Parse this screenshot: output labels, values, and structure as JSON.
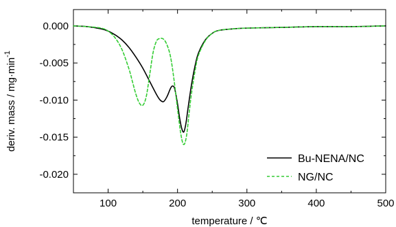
{
  "chart_data": {
    "type": "line",
    "title": "",
    "xlabel": "temperature / ℃",
    "ylabel": "deriv. mass / mg·min",
    "ylabel_sup": "-1",
    "xlim": [
      50,
      500
    ],
    "ylim": [
      -0.0225,
      0.0022
    ],
    "xticks": [
      100,
      200,
      300,
      400,
      500
    ],
    "xtick_labels": [
      "100",
      "200",
      "300",
      "400",
      "500"
    ],
    "yticks": [
      0.0,
      -0.005,
      -0.01,
      -0.015,
      -0.02
    ],
    "ytick_labels": [
      "0.000",
      "-0.005",
      "-0.010",
      "-0.015",
      "-0.020"
    ],
    "grid": false,
    "legend_position": "bottom-right",
    "series": [
      {
        "name": "Bu-NENA/NC",
        "color": "#000000",
        "dash": "solid",
        "x": [
          50,
          70,
          90,
          100,
          110,
          120,
          130,
          140,
          150,
          160,
          170,
          175,
          180,
          185,
          190,
          193,
          196,
          200,
          203,
          206,
          209,
          212,
          215,
          220,
          225,
          230,
          240,
          250,
          260,
          280,
          300,
          350,
          400,
          450,
          500
        ],
        "y": [
          0.0,
          -0.0001,
          -0.0004,
          -0.0007,
          -0.0012,
          -0.0019,
          -0.0029,
          -0.0042,
          -0.0057,
          -0.0075,
          -0.0093,
          -0.01,
          -0.0102,
          -0.0095,
          -0.0084,
          -0.0081,
          -0.0085,
          -0.0105,
          -0.0124,
          -0.0138,
          -0.0143,
          -0.0132,
          -0.0112,
          -0.008,
          -0.0055,
          -0.0037,
          -0.0019,
          -0.001,
          -0.0006,
          -0.0004,
          -0.0003,
          -0.0002,
          -0.0001,
          -0.0001,
          0.0
        ]
      },
      {
        "name": "NG/NC",
        "color": "#33cc33",
        "dash": "dashed",
        "x": [
          50,
          70,
          90,
          100,
          110,
          120,
          130,
          135,
          140,
          145,
          150,
          155,
          160,
          165,
          170,
          175,
          180,
          185,
          190,
          195,
          200,
          205,
          209,
          213,
          217,
          220,
          225,
          230,
          240,
          250,
          260,
          280,
          300,
          350,
          400,
          450,
          500
        ],
        "y": [
          0.0,
          -0.0001,
          -0.0003,
          -0.0007,
          -0.0016,
          -0.0032,
          -0.0058,
          -0.0075,
          -0.0092,
          -0.0104,
          -0.0107,
          -0.0095,
          -0.0065,
          -0.0035,
          -0.002,
          -0.0017,
          -0.0018,
          -0.0026,
          -0.0042,
          -0.0073,
          -0.0112,
          -0.0147,
          -0.016,
          -0.0148,
          -0.0115,
          -0.0092,
          -0.0062,
          -0.004,
          -0.002,
          -0.001,
          -0.0006,
          -0.0004,
          -0.0003,
          -0.0002,
          -0.0001,
          -0.0001,
          0.0
        ]
      }
    ]
  }
}
